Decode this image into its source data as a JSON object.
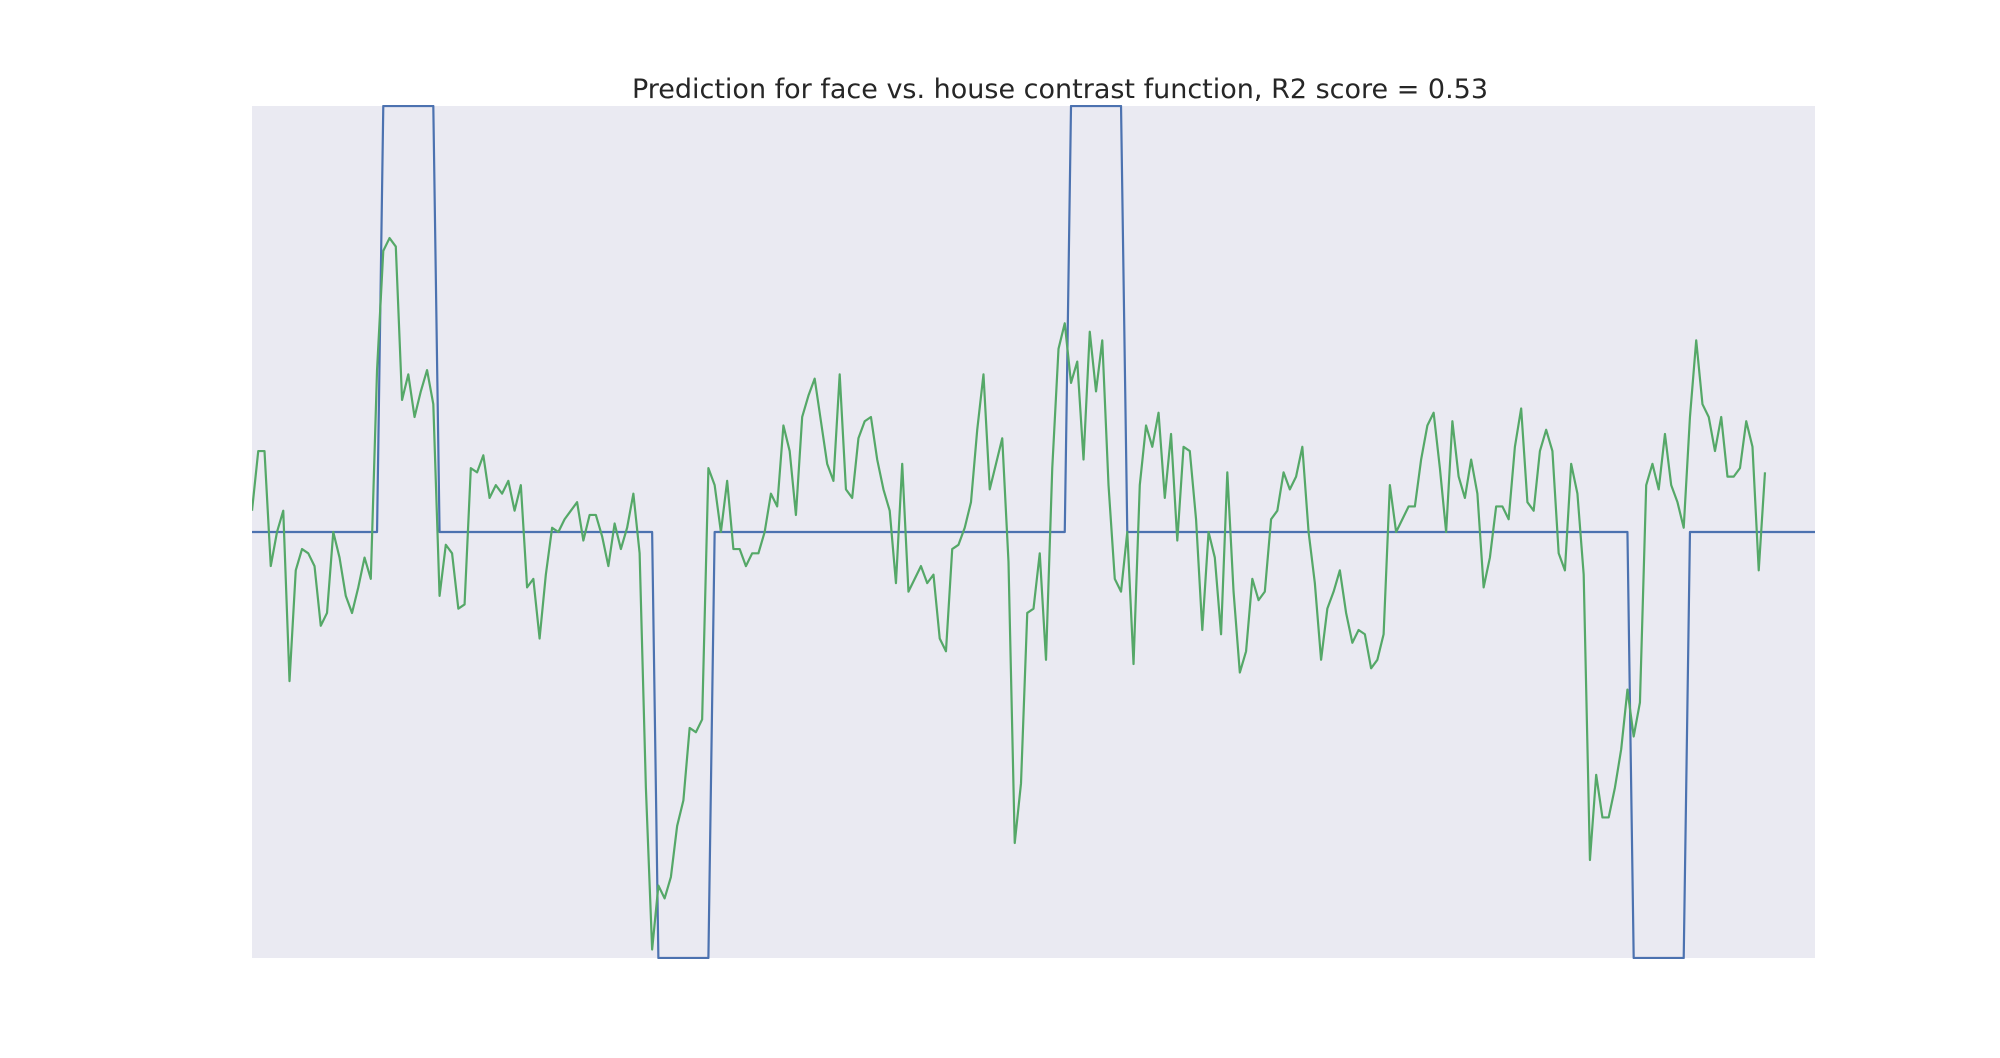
{
  "chart_data": {
    "type": "line",
    "title": "Prediction for face vs. house contrast function, R2 score = 0.53",
    "xlabel": "",
    "ylabel": "",
    "grid": false,
    "legend": "none",
    "xlim": [
      0,
      250
    ],
    "ylim": [
      -1.0,
      1.0
    ],
    "background_color": "#EAEAF2",
    "series": [
      {
        "color": "#4C72B0",
        "x": [
          0,
          20,
          21,
          29,
          30,
          64,
          65,
          73,
          74,
          130,
          131,
          139,
          140,
          220,
          221,
          229,
          230,
          250
        ],
        "y": [
          0,
          0,
          1,
          1,
          0,
          0,
          -1,
          -1,
          0,
          0,
          1,
          1,
          0,
          0,
          -1,
          -1,
          0,
          0
        ]
      },
      {
        "color": "#55A868",
        "y": [
          0.05,
          0.19,
          0.19,
          -0.08,
          0.0,
          0.05,
          -0.35,
          -0.09,
          -0.04,
          -0.05,
          -0.08,
          -0.22,
          -0.19,
          0.0,
          -0.06,
          -0.15,
          -0.19,
          -0.13,
          -0.06,
          -0.11,
          0.38,
          0.66,
          0.69,
          0.67,
          0.31,
          0.37,
          0.27,
          0.33,
          0.38,
          0.3,
          -0.15,
          -0.03,
          -0.05,
          -0.18,
          -0.17,
          0.15,
          0.14,
          0.18,
          0.08,
          0.11,
          0.09,
          0.12,
          0.05,
          0.11,
          -0.13,
          -0.11,
          -0.25,
          -0.1,
          0.01,
          0.0,
          0.03,
          0.05,
          0.07,
          -0.02,
          0.04,
          0.04,
          -0.01,
          -0.08,
          0.02,
          -0.04,
          0.01,
          0.09,
          -0.05,
          -0.6,
          -0.98,
          -0.83,
          -0.86,
          -0.81,
          -0.69,
          -0.63,
          -0.46,
          -0.47,
          -0.44,
          0.15,
          0.11,
          0.0,
          0.12,
          -0.04,
          -0.04,
          -0.08,
          -0.05,
          -0.05,
          0.0,
          0.09,
          0.06,
          0.25,
          0.19,
          0.04,
          0.27,
          0.32,
          0.36,
          0.26,
          0.16,
          0.12,
          0.37,
          0.1,
          0.08,
          0.22,
          0.26,
          0.27,
          0.17,
          0.1,
          0.05,
          -0.12,
          0.16,
          -0.14,
          -0.11,
          -0.08,
          -0.12,
          -0.1,
          -0.25,
          -0.28,
          -0.04,
          -0.03,
          0.01,
          0.07,
          0.24,
          0.37,
          0.1,
          0.16,
          0.22,
          -0.07,
          -0.73,
          -0.59,
          -0.19,
          -0.18,
          -0.05,
          -0.3,
          0.15,
          0.43,
          0.49,
          0.35,
          0.4,
          0.17,
          0.47,
          0.33,
          0.45,
          0.11,
          -0.11,
          -0.14,
          0.0,
          -0.31,
          0.11,
          0.25,
          0.2,
          0.28,
          0.08,
          0.23,
          -0.02,
          0.2,
          0.19,
          0.03,
          -0.23,
          0.0,
          -0.06,
          -0.24,
          0.14,
          -0.14,
          -0.33,
          -0.28,
          -0.11,
          -0.16,
          -0.14,
          0.03,
          0.05,
          0.14,
          0.1,
          0.13,
          0.2,
          0.0,
          -0.12,
          -0.3,
          -0.18,
          -0.14,
          -0.09,
          -0.19,
          -0.26,
          -0.23,
          -0.24,
          -0.32,
          -0.3,
          -0.24,
          0.11,
          0.0,
          0.03,
          0.06,
          0.06,
          0.17,
          0.25,
          0.28,
          0.15,
          0.0,
          0.26,
          0.13,
          0.08,
          0.17,
          0.09,
          -0.13,
          -0.06,
          0.06,
          0.06,
          0.03,
          0.2,
          0.29,
          0.07,
          0.05,
          0.19,
          0.24,
          0.19,
          -0.05,
          -0.09,
          0.16,
          0.09,
          -0.1,
          -0.77,
          -0.57,
          -0.67,
          -0.67,
          -0.6,
          -0.51,
          -0.37,
          -0.48,
          -0.4,
          0.11,
          0.16,
          0.1,
          0.23,
          0.11,
          0.07,
          0.01,
          0.27,
          0.45,
          0.3,
          0.27,
          0.19,
          0.27,
          0.13,
          0.13,
          0.15,
          0.26,
          0.2,
          -0.09,
          0.14
        ]
      }
    ]
  }
}
